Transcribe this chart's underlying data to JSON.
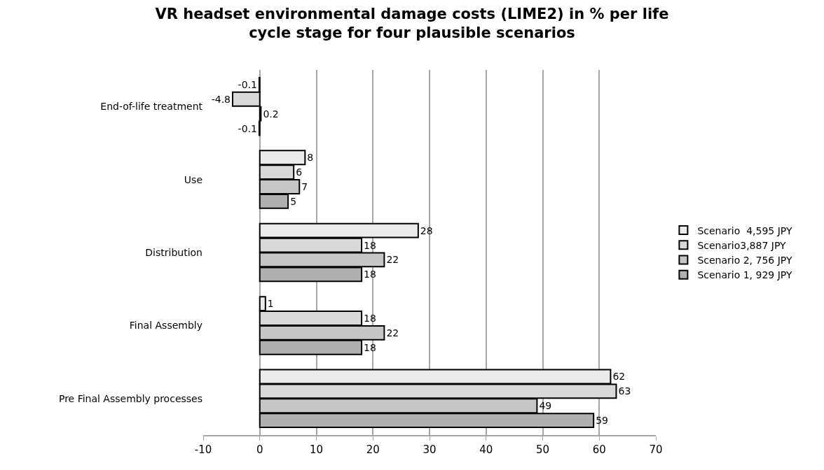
{
  "chart_data": {
    "type": "bar",
    "orientation": "horizontal",
    "title": "VR headset environmental damage costs (LIME2) in % per life cycle stage for four plausible scenarios",
    "categories": [
      "End-of-life treatment",
      "Use",
      "Distribution",
      "Final Assembly",
      "Pre Final Assembly processes"
    ],
    "series": [
      {
        "name": "Scenario  4,595 JPY",
        "color": "#ebebeb",
        "values": [
          -0.1,
          8,
          28,
          1,
          62
        ]
      },
      {
        "name": "Scenario3,887 JPY",
        "color": "#d9d9d9",
        "values": [
          -4.8,
          6,
          18,
          18,
          63
        ]
      },
      {
        "name": "Scenario 2, 756 JPY",
        "color": "#c6c6c6",
        "values": [
          0.2,
          7,
          22,
          22,
          49
        ]
      },
      {
        "name": "Scenario 1, 929 JPY",
        "color": "#b0b0b0",
        "values": [
          -0.1,
          5,
          18,
          18,
          59
        ]
      }
    ],
    "xlim": [
      -10,
      70
    ],
    "xticks": [
      -10,
      0,
      10,
      20,
      30,
      40,
      50,
      60,
      70
    ],
    "grid": "x",
    "legend": "right",
    "data_labels": true
  }
}
